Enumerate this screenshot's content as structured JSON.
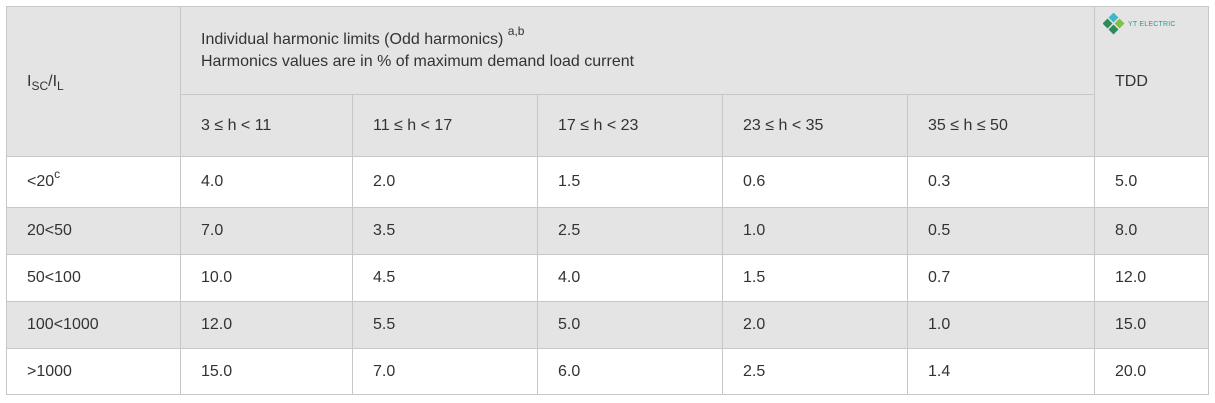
{
  "header": {
    "ratio_main": "I",
    "ratio_sub1": "SC",
    "ratio_sep": "/I",
    "ratio_sub2": "L",
    "title_line1": "Individual harmonic limits (Odd harmonics)",
    "title_sup": "a,b",
    "title_line2": "Harmonics values are in % of maximum demand load current",
    "tdd_label": "TDD",
    "ranges": [
      "3 ≤ h < 11",
      "11 ≤ h < 17",
      "17 ≤ h < 23",
      "23 ≤ h < 35",
      "35 ≤ h ≤ 50"
    ]
  },
  "logo": {
    "text": "YT ELECTRIC",
    "icon": "yt-electric-diamond-logo",
    "colors": [
      "#2e8b57",
      "#3cb8c8",
      "#7fc241"
    ]
  },
  "rows": [
    {
      "ratio": "<20",
      "ratio_sup": "c",
      "values": [
        "4.0",
        "2.0",
        "1.5",
        "0.6",
        "0.3"
      ],
      "tdd": "5.0"
    },
    {
      "ratio": "20<50",
      "ratio_sup": "",
      "values": [
        "7.0",
        "3.5",
        "2.5",
        "1.0",
        "0.5"
      ],
      "tdd": "8.0"
    },
    {
      "ratio": "50<100",
      "ratio_sup": "",
      "values": [
        "10.0",
        "4.5",
        "4.0",
        "1.5",
        "0.7"
      ],
      "tdd": "12.0"
    },
    {
      "ratio": "100<1000",
      "ratio_sup": "",
      "values": [
        "12.0",
        "5.5",
        "5.0",
        "2.0",
        "1.0"
      ],
      "tdd": "15.0"
    },
    {
      "ratio": ">1000",
      "ratio_sup": "",
      "values": [
        "15.0",
        "7.0",
        "6.0",
        "2.5",
        "1.4"
      ],
      "tdd": "20.0"
    }
  ],
  "colors": {
    "header_bg": "#e4e4e4",
    "border": "#c7c7c7",
    "text": "#333333"
  }
}
